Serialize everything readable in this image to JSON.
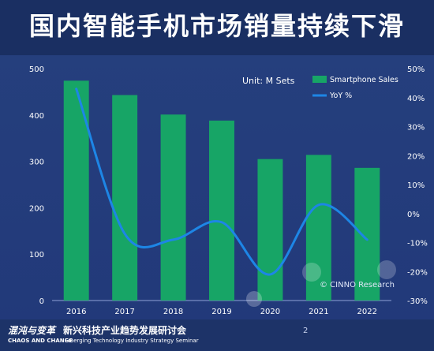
{
  "title": "国内智能手机市场销量持续下滑",
  "chart_data": {
    "type": "bar",
    "categories": [
      "2016",
      "2017",
      "2018",
      "2019",
      "2020",
      "2021",
      "2022"
    ],
    "series": [
      {
        "name": "Smartphone Sales",
        "type": "bar",
        "axis": "left",
        "values": [
          474,
          443,
          401,
          388,
          305,
          314,
          286
        ]
      },
      {
        "name": "YoY %",
        "type": "line",
        "axis": "right",
        "values": [
          43,
          -7,
          -9,
          -3,
          -21,
          3,
          -9
        ]
      }
    ],
    "unit_label": "Unit: M Sets",
    "ylim_left": [
      0,
      500
    ],
    "yticks_left": [
      "0",
      "100",
      "200",
      "300",
      "400",
      "500"
    ],
    "ylim_right": [
      -30,
      50
    ],
    "yticks_right": [
      "-30%",
      "-20%",
      "-10%",
      "0%",
      "10%",
      "20%",
      "30%",
      "40%",
      "50%"
    ],
    "legend_position": "top-right",
    "source": "© CINNO Research",
    "colors": {
      "bar": "#17a566",
      "line": "#1d86e6"
    }
  },
  "footer": {
    "brand_cn_1": "混沌与变革",
    "brand_cn_2": "新兴科技产业趋势发展研讨会",
    "brand_en_1": "CHAOS AND CHANGE",
    "brand_en_2": "Emerging Technology Industry Strategy Seminar",
    "page_number": "2"
  }
}
